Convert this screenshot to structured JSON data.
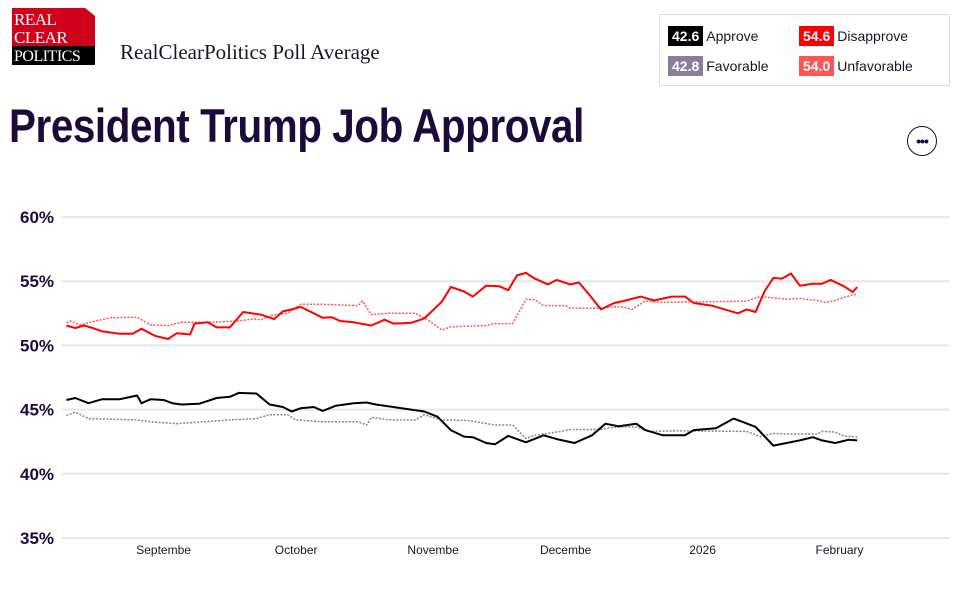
{
  "logo": {
    "text": [
      "REAL",
      "CLEAR",
      "POLITICS"
    ]
  },
  "header": {
    "subtitle": "RealClearPolitics Poll Average",
    "title": "President Trump Job Approval",
    "more_label": "•••"
  },
  "legend": [
    {
      "value": "42.6",
      "label": "Approve",
      "color": "#000000"
    },
    {
      "value": "54.6",
      "label": "Disapprove",
      "color": "#ff0000"
    },
    {
      "value": "42.8",
      "label": "Favorable",
      "color": "#8a7f9a"
    },
    {
      "value": "54.0",
      "label": "Unfavorable",
      "color": "#ff5555"
    }
  ],
  "chart_data": {
    "type": "line",
    "title": "President Trump Job Approval",
    "xlabel": "",
    "ylabel": "",
    "x_unit": "days since Aug 1, 2025",
    "xlim": [
      8,
      209
    ],
    "ylim": [
      35,
      60
    ],
    "y_ticks": [
      {
        "v": 60,
        "label": "60%"
      },
      {
        "v": 55,
        "label": "55%"
      },
      {
        "v": 50,
        "label": "50%"
      },
      {
        "v": 45,
        "label": "45%"
      },
      {
        "v": 40,
        "label": "40%"
      },
      {
        "v": 35,
        "label": "35%"
      }
    ],
    "x_ticks": [
      {
        "v": 31,
        "label": "Septembe"
      },
      {
        "v": 61,
        "label": "October"
      },
      {
        "v": 92,
        "label": "Novembe"
      },
      {
        "v": 122,
        "label": "Decembe"
      },
      {
        "v": 153,
        "label": "2026"
      },
      {
        "v": 184,
        "label": "February"
      }
    ],
    "grid": true,
    "series": [
      {
        "name": "Unfavorable",
        "color": "#ff5555",
        "dashed": true,
        "x": [
          9,
          10,
          12,
          15,
          19,
          25,
          28,
          32,
          35,
          41,
          48,
          51,
          53,
          56,
          59,
          62,
          67,
          75,
          76,
          78,
          82,
          88,
          91,
          94,
          96,
          104,
          106,
          110,
          113,
          115,
          117,
          122,
          123,
          130,
          132,
          135,
          137,
          140,
          144,
          163,
          166,
          172,
          175,
          179,
          181,
          183,
          185,
          188
        ],
        "y": [
          51.75,
          51.9,
          51.6,
          51.85,
          52.15,
          52.2,
          51.6,
          51.55,
          51.8,
          51.8,
          51.9,
          52.05,
          52.0,
          52.4,
          52.5,
          53.2,
          53.2,
          53.1,
          53.45,
          52.4,
          52.5,
          52.5,
          51.95,
          51.2,
          51.45,
          51.55,
          51.7,
          51.7,
          53.6,
          53.55,
          53.1,
          53.1,
          52.9,
          52.9,
          53.0,
          53.0,
          52.8,
          53.45,
          53.35,
          53.45,
          53.8,
          53.6,
          53.65,
          53.5,
          53.35,
          53.5,
          53.75,
          54.0
        ]
      },
      {
        "name": "Favorable",
        "color": "#8a7f9a",
        "dashed": true,
        "x": [
          9,
          11,
          14,
          25,
          28,
          34,
          38,
          46,
          52,
          55,
          59,
          61,
          67,
          75,
          77,
          78,
          82,
          88,
          90,
          94,
          100,
          106,
          110,
          113,
          115,
          121,
          123,
          130,
          132,
          135,
          138,
          141,
          147,
          163,
          166,
          169,
          172,
          179,
          180,
          183,
          185,
          188
        ],
        "y": [
          44.55,
          44.8,
          44.3,
          44.2,
          44.05,
          43.9,
          44.0,
          44.2,
          44.3,
          44.6,
          44.6,
          44.2,
          44.05,
          44.05,
          43.8,
          44.4,
          44.2,
          44.2,
          44.6,
          44.2,
          44.15,
          43.8,
          43.8,
          42.75,
          43.0,
          43.3,
          43.45,
          43.45,
          43.6,
          43.65,
          43.65,
          43.3,
          43.35,
          43.3,
          42.9,
          43.15,
          43.1,
          43.1,
          43.3,
          43.25,
          42.95,
          42.85
        ]
      },
      {
        "name": "Disapprove",
        "color": "#ff0000",
        "dashed": false,
        "x": [
          9,
          11,
          13,
          15,
          17,
          21,
          24,
          26,
          29,
          32,
          34,
          37,
          38,
          41,
          43,
          46,
          49,
          53,
          56,
          58,
          60,
          62,
          65,
          67,
          69,
          71,
          74,
          78,
          81,
          83,
          87,
          90,
          94,
          96,
          99,
          101,
          104,
          107,
          109,
          111,
          113,
          115,
          118,
          120,
          123,
          125,
          127,
          130,
          133,
          135,
          139,
          142,
          146,
          149,
          151,
          155,
          158,
          161,
          163,
          165,
          167,
          169,
          171,
          173,
          175,
          178,
          180,
          182,
          185,
          187,
          188
        ],
        "y": [
          51.55,
          51.35,
          51.55,
          51.35,
          51.1,
          50.9,
          50.9,
          51.3,
          50.75,
          50.5,
          50.95,
          50.85,
          51.7,
          51.8,
          51.4,
          51.4,
          52.6,
          52.4,
          52.05,
          52.65,
          52.8,
          53.0,
          52.5,
          52.15,
          52.2,
          51.9,
          51.8,
          51.55,
          52.0,
          51.7,
          51.75,
          52.1,
          53.4,
          54.55,
          54.2,
          53.8,
          54.65,
          54.6,
          54.3,
          55.45,
          55.65,
          55.2,
          54.75,
          55.1,
          54.75,
          54.9,
          54.1,
          52.8,
          53.3,
          53.45,
          53.8,
          53.5,
          53.8,
          53.8,
          53.3,
          53.1,
          52.8,
          52.5,
          52.8,
          52.6,
          54.2,
          55.25,
          55.2,
          55.6,
          54.65,
          54.8,
          54.8,
          55.1,
          54.6,
          54.15,
          54.55
        ]
      },
      {
        "name": "Approve",
        "color": "#000000",
        "dashed": false,
        "x": [
          9,
          11,
          14,
          17,
          21,
          25,
          26,
          28,
          31,
          33,
          35,
          39,
          43,
          46,
          48,
          52,
          55,
          58,
          60,
          62,
          65,
          67,
          70,
          74,
          77,
          79,
          83,
          87,
          90,
          93,
          96,
          99,
          101,
          104,
          106,
          109,
          111,
          113,
          117,
          120,
          124,
          128,
          131,
          134,
          138,
          140,
          144,
          149,
          151,
          156,
          160,
          162,
          165,
          169,
          172,
          175,
          178,
          180,
          183,
          186,
          188
        ],
        "y": [
          45.75,
          45.9,
          45.5,
          45.8,
          45.8,
          46.1,
          45.5,
          45.8,
          45.75,
          45.5,
          45.4,
          45.45,
          45.9,
          46.0,
          46.3,
          46.25,
          45.4,
          45.2,
          44.85,
          45.1,
          45.2,
          44.9,
          45.3,
          45.5,
          45.55,
          45.4,
          45.2,
          45.0,
          44.85,
          44.45,
          43.4,
          42.9,
          42.85,
          42.4,
          42.3,
          42.95,
          42.7,
          42.45,
          43.0,
          42.7,
          42.4,
          43.0,
          43.9,
          43.7,
          43.9,
          43.4,
          43.0,
          43.0,
          43.4,
          43.55,
          44.3,
          44.05,
          43.65,
          42.2,
          42.4,
          42.6,
          42.85,
          42.6,
          42.4,
          42.65,
          42.6
        ]
      }
    ]
  }
}
